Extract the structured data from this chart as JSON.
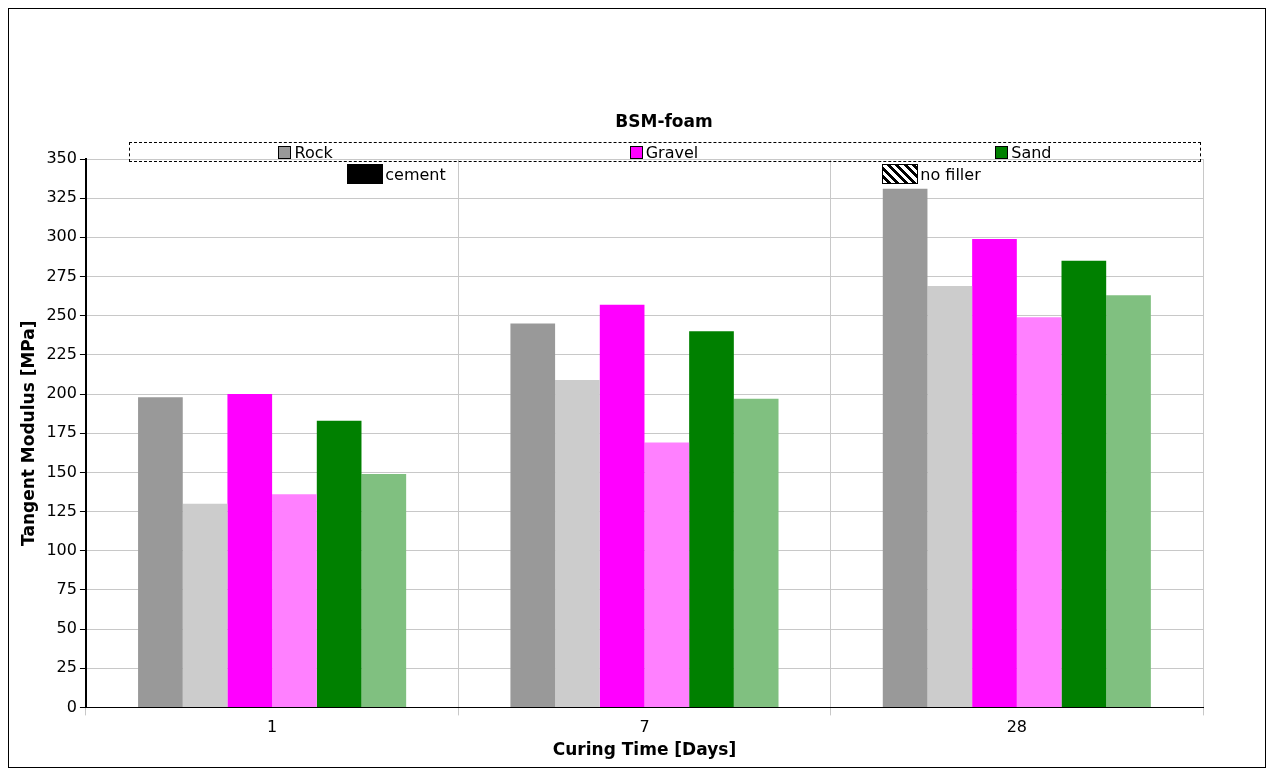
{
  "chart_data": {
    "type": "bar",
    "xlabel": "Curing Time [Days]",
    "ylabel": "Tangent Modulus [MPa]",
    "legend_title": "BSM-foam",
    "legend": "top",
    "grid": true,
    "categories": [
      "1",
      "7",
      "28"
    ],
    "series": [
      {
        "name": "Rock",
        "color": "#999999",
        "values": [
          198,
          245,
          331
        ]
      },
      {
        "color": "#cccccc",
        "values": [
          130,
          209,
          269
        ]
      },
      {
        "name": "Gravel",
        "color": "#ff00ff",
        "values": [
          200,
          257,
          299
        ]
      },
      {
        "color": "#ff80ff",
        "values": [
          136,
          169,
          249
        ]
      },
      {
        "name": "Sand",
        "color": "#008000",
        "values": [
          183,
          240,
          285
        ]
      },
      {
        "color": "#80c080",
        "values": [
          149,
          197,
          263
        ]
      }
    ],
    "annotations": [
      "cement",
      "no filler"
    ],
    "ylim": [
      0,
      350
    ],
    "yticks": [
      0,
      25,
      50,
      75,
      100,
      125,
      150,
      175,
      200,
      225,
      250,
      275,
      300,
      325,
      350
    ]
  }
}
